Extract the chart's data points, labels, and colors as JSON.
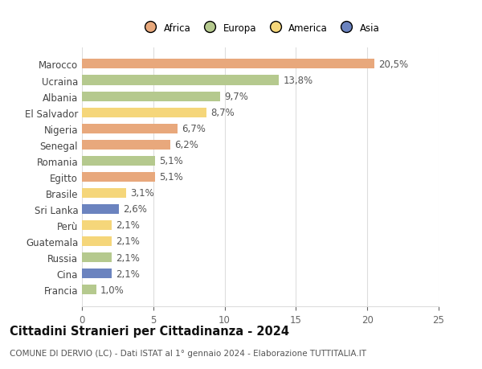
{
  "categories": [
    "Francia",
    "Cina",
    "Russia",
    "Guatemala",
    "Perù",
    "Sri Lanka",
    "Brasile",
    "Egitto",
    "Romania",
    "Senegal",
    "Nigeria",
    "El Salvador",
    "Albania",
    "Ucraina",
    "Marocco"
  ],
  "values": [
    1.0,
    2.1,
    2.1,
    2.1,
    2.1,
    2.6,
    3.1,
    5.1,
    5.1,
    6.2,
    6.7,
    8.7,
    9.7,
    13.8,
    20.5
  ],
  "labels": [
    "1,0%",
    "2,1%",
    "2,1%",
    "2,1%",
    "2,1%",
    "2,6%",
    "3,1%",
    "5,1%",
    "5,1%",
    "6,2%",
    "6,7%",
    "8,7%",
    "9,7%",
    "13,8%",
    "20,5%"
  ],
  "colors": [
    "#b5c98e",
    "#6b83bf",
    "#b5c98e",
    "#f5d67a",
    "#f5d67a",
    "#6b83bf",
    "#f5d67a",
    "#e8a87c",
    "#b5c98e",
    "#e8a87c",
    "#e8a87c",
    "#f5d67a",
    "#b5c98e",
    "#b5c98e",
    "#e8a87c"
  ],
  "continent": [
    "Europa",
    "Asia",
    "Europa",
    "America",
    "America",
    "Asia",
    "America",
    "Africa",
    "Europa",
    "Africa",
    "Africa",
    "America",
    "Europa",
    "Europa",
    "Africa"
  ],
  "legend_labels": [
    "Africa",
    "Europa",
    "America",
    "Asia"
  ],
  "legend_colors": [
    "#e8a87c",
    "#b5c98e",
    "#f5d67a",
    "#6b83bf"
  ],
  "title": "Cittadini Stranieri per Cittadinanza - 2024",
  "subtitle": "COMUNE DI DERVIO (LC) - Dati ISTAT al 1° gennaio 2024 - Elaborazione TUTTITALIA.IT",
  "xlim": [
    0,
    25
  ],
  "xticks": [
    0,
    5,
    10,
    15,
    20,
    25
  ],
  "background_color": "#ffffff",
  "grid_color": "#dddddd",
  "bar_height": 0.6,
  "label_fontsize": 8.5,
  "tick_fontsize": 8.5,
  "title_fontsize": 10.5,
  "subtitle_fontsize": 7.5
}
